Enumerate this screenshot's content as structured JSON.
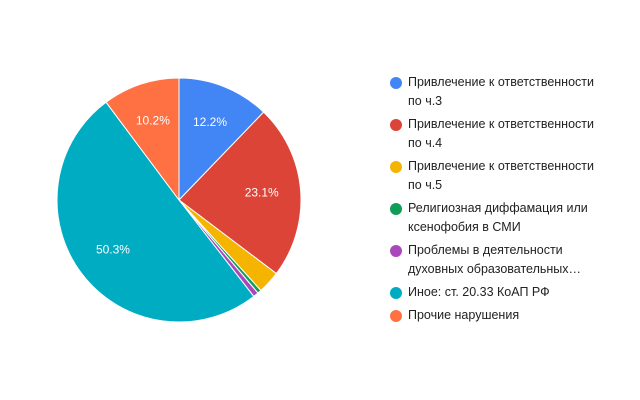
{
  "chart_data": {
    "type": "pie",
    "categories": [
      "Привлечение к ответственности по ч.3",
      "Привлечение к ответственности по ч.4",
      "Привлечение к ответственности по ч.5",
      "Религиозная диффамация или ксенофобия в СМИ",
      "Проблемы в деятельности духовных образовательных…",
      "Иное: ст. 20.33 КоАП РФ",
      "Прочие нарушения"
    ],
    "values": [
      12.2,
      23.1,
      3.0,
      0.5,
      0.7,
      50.3,
      10.2
    ],
    "value_labels": [
      "12.2%",
      "23.1%",
      null,
      null,
      null,
      "50.3%",
      "10.2%"
    ],
    "colors": [
      "#4285f4",
      "#db4437",
      "#f4b400",
      "#0f9d58",
      "#ab47bc",
      "#00acc1",
      "#ff7043"
    ],
    "legend": "right"
  }
}
